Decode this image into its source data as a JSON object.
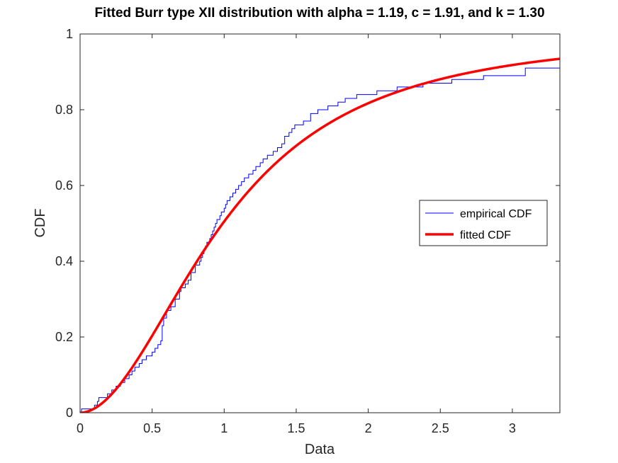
{
  "chart_data": {
    "type": "line",
    "title": "Fitted Burr type XII distribution with alpha = 1.19, c =  1.91, and k = 1.30",
    "xlabel": "Data",
    "ylabel": "CDF",
    "xlim": [
      0,
      3.33
    ],
    "ylim": [
      0,
      1
    ],
    "x_ticks": [
      0,
      0.5,
      1,
      1.5,
      2,
      2.5,
      3
    ],
    "x_tick_labels": [
      "0",
      "0.5",
      "1",
      "1.5",
      "2",
      "2.5",
      "3"
    ],
    "y_ticks": [
      0,
      0.2,
      0.4,
      0.6,
      0.8,
      1
    ],
    "y_tick_labels": [
      "0",
      "0.2",
      "0.4",
      "0.6",
      "0.8",
      "1"
    ],
    "grid": false,
    "legend_position": "right",
    "series": [
      {
        "name": "empirical CDF",
        "color": "#0000ff",
        "style": "step",
        "x": [
          0,
          0.01,
          0.1,
          0.12,
          0.13,
          0.19,
          0.22,
          0.25,
          0.28,
          0.31,
          0.34,
          0.36,
          0.38,
          0.41,
          0.43,
          0.46,
          0.5,
          0.52,
          0.54,
          0.56,
          0.57,
          0.58,
          0.6,
          0.63,
          0.66,
          0.69,
          0.7,
          0.73,
          0.75,
          0.77,
          0.8,
          0.83,
          0.84,
          0.85,
          0.86,
          0.87,
          0.88,
          0.9,
          0.91,
          0.92,
          0.93,
          0.94,
          0.95,
          0.97,
          0.98,
          1.0,
          1.01,
          1.02,
          1.04,
          1.06,
          1.08,
          1.1,
          1.12,
          1.14,
          1.17,
          1.2,
          1.22,
          1.25,
          1.27,
          1.3,
          1.34,
          1.37,
          1.4,
          1.42,
          1.45,
          1.47,
          1.49,
          1.51,
          1.55,
          1.6,
          1.65,
          1.72,
          1.79,
          1.84,
          1.92,
          2.06,
          2.2,
          2.38,
          2.58,
          2.8,
          3.09,
          3.33
        ],
        "y": [
          0.0,
          0.01,
          0.02,
          0.03,
          0.04,
          0.05,
          0.06,
          0.07,
          0.08,
          0.09,
          0.1,
          0.11,
          0.12,
          0.13,
          0.14,
          0.15,
          0.16,
          0.17,
          0.18,
          0.19,
          0.23,
          0.25,
          0.27,
          0.28,
          0.3,
          0.32,
          0.33,
          0.34,
          0.35,
          0.37,
          0.39,
          0.4,
          0.41,
          0.42,
          0.43,
          0.44,
          0.45,
          0.46,
          0.47,
          0.48,
          0.49,
          0.5,
          0.51,
          0.52,
          0.53,
          0.54,
          0.55,
          0.56,
          0.57,
          0.58,
          0.59,
          0.6,
          0.61,
          0.62,
          0.63,
          0.64,
          0.65,
          0.66,
          0.67,
          0.68,
          0.69,
          0.7,
          0.71,
          0.73,
          0.74,
          0.75,
          0.76,
          0.76,
          0.77,
          0.79,
          0.8,
          0.81,
          0.82,
          0.83,
          0.84,
          0.85,
          0.86,
          0.87,
          0.88,
          0.89,
          0.91,
          0.92
        ]
      },
      {
        "name": "fitted CDF",
        "color": "#ff0000",
        "style": "line",
        "params": {
          "alpha": 1.19,
          "c": 1.91,
          "k": 1.3
        }
      }
    ]
  }
}
